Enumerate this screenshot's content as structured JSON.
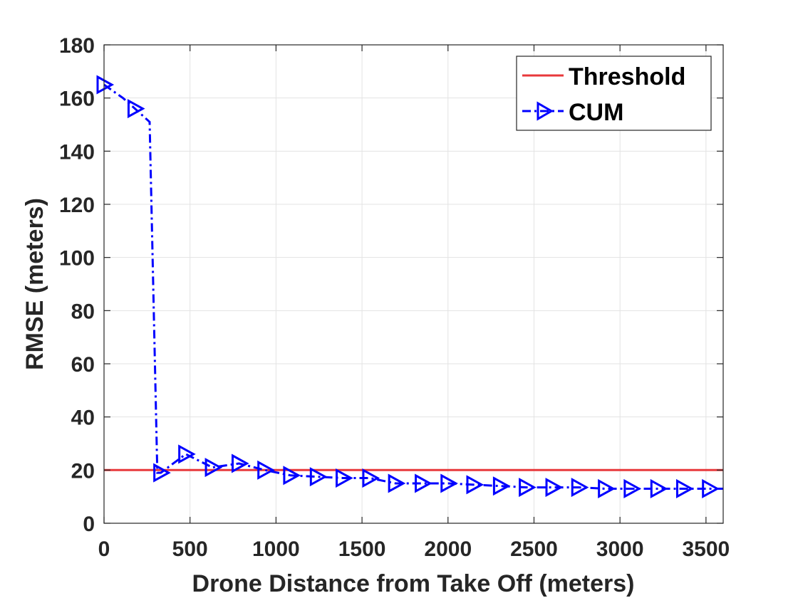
{
  "chart_data": {
    "type": "line",
    "title": "",
    "xlabel": "Drone Distance from Take Off (meters)",
    "ylabel": "RMSE (meters)",
    "xlim": [
      0,
      3600
    ],
    "ylim": [
      0,
      180
    ],
    "xticks": [
      0,
      500,
      1000,
      1500,
      2000,
      2500,
      3000,
      3500
    ],
    "yticks": [
      0,
      20,
      40,
      60,
      80,
      100,
      120,
      140,
      160,
      180
    ],
    "grid": true,
    "legend_position": "top-right",
    "series": [
      {
        "name": "Threshold",
        "color": "#e8383b",
        "line_style": "solid",
        "marker": "none",
        "x": [
          0,
          3600
        ],
        "y": [
          20,
          20
        ]
      },
      {
        "name": "CUM",
        "color": "#0000ff",
        "line_style": "dash-dot",
        "marker": "triangle-right",
        "x": [
          0,
          110,
          180,
          265,
          310,
          330,
          475,
          630,
          785,
          935,
          1085,
          1240,
          1390,
          1545,
          1695,
          1850,
          2000,
          2150,
          2305,
          2455,
          2610,
          2760,
          2915,
          3065,
          3220,
          3370,
          3520,
          3600
        ],
        "y": [
          165,
          160,
          156,
          151,
          19,
          19,
          26,
          21,
          22.5,
          20,
          18,
          17.5,
          17,
          17,
          15,
          15,
          15,
          14.5,
          14,
          13.5,
          13.5,
          13.5,
          13,
          13,
          13,
          13,
          13,
          13
        ],
        "marker_x": [
          0,
          180,
          330,
          475,
          630,
          785,
          935,
          1085,
          1240,
          1390,
          1545,
          1695,
          1850,
          2000,
          2150,
          2305,
          2455,
          2610,
          2760,
          2915,
          3065,
          3220,
          3370,
          3520
        ],
        "marker_y": [
          165,
          156,
          19,
          26,
          21,
          22.5,
          20,
          18,
          17.5,
          17,
          17,
          15,
          15,
          15,
          14.5,
          14,
          13.5,
          13.5,
          13.5,
          13,
          13,
          13,
          13,
          13
        ]
      }
    ]
  }
}
